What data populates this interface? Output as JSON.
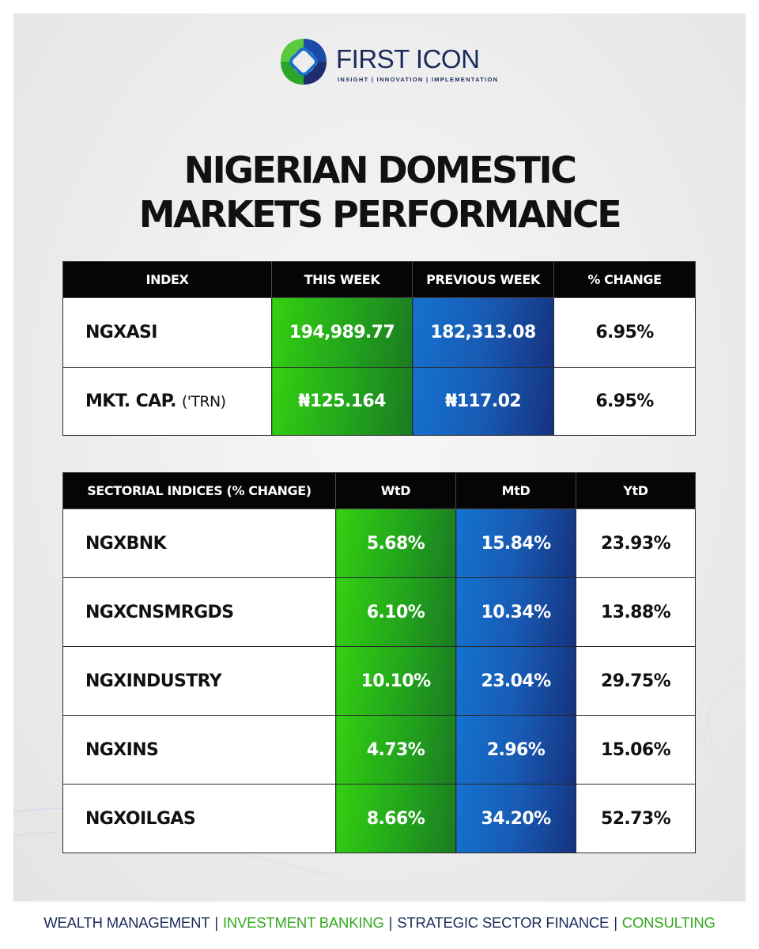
{
  "brand": {
    "name": "FIRST ICON",
    "tagline": "INSIGHT | INNOVATION | IMPLEMENTATION"
  },
  "title": {
    "line1": "NIGERIAN DOMESTIC",
    "line2": "MARKETS PERFORMANCE"
  },
  "index_table": {
    "headers": [
      "INDEX",
      "THIS WEEK",
      "PREVIOUS WEEK",
      "% CHANGE"
    ],
    "rows": [
      {
        "name": "NGXASI",
        "unit": "",
        "this_week": "194,989.77",
        "previous_week": "182,313.08",
        "change": "6.95%"
      },
      {
        "name": "MKT. CAP.",
        "unit": "('TRN)",
        "this_week": "₦125.164",
        "previous_week": "₦117.02",
        "change": "6.95%"
      }
    ]
  },
  "sector_table": {
    "headers": [
      "SECTORIAL INDICES (% CHANGE)",
      "WtD",
      "MtD",
      "YtD"
    ],
    "rows": [
      {
        "name": "NGXBNK",
        "wtd": "5.68%",
        "mtd": "15.84%",
        "ytd": "23.93%"
      },
      {
        "name": "NGXCNSMRGDS",
        "wtd": "6.10%",
        "mtd": "10.34%",
        "ytd": "13.88%"
      },
      {
        "name": "NGXINDUSTRY",
        "wtd": "10.10%",
        "mtd": "23.04%",
        "ytd": "29.75%"
      },
      {
        "name": "NGXINS",
        "wtd": "4.73%",
        "mtd": "2.96%",
        "ytd": "15.06%"
      },
      {
        "name": "NGXOILGAS",
        "wtd": "8.66%",
        "mtd": "34.20%",
        "ytd": "52.73%"
      }
    ]
  },
  "footer": {
    "items": [
      "WEALTH MANAGEMENT",
      "INVESTMENT BANKING",
      "STRATEGIC SECTOR FINANCE",
      "CONSULTING"
    ],
    "separator": "|"
  },
  "colors": {
    "navy": "#1b2a5c",
    "green": "#2fb61b",
    "blue": "#185bb4",
    "header_bg": "#050505"
  }
}
